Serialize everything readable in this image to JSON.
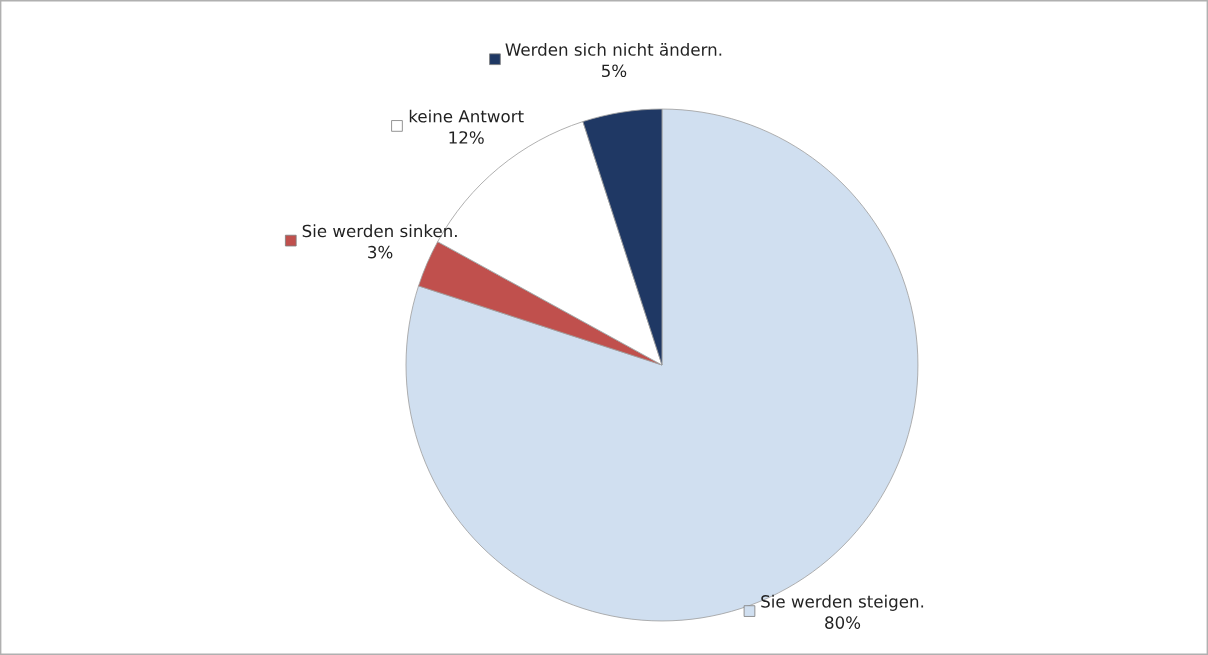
{
  "chart_data": {
    "type": "pie",
    "categories": [
      "Sie werden steigen.",
      "Sie werden sinken.",
      "keine Antwort",
      "Werden sich nicht ändern."
    ],
    "values": [
      80,
      3,
      12,
      5
    ],
    "colors": [
      "#d0dff0",
      "#c0504d",
      "#ffffff",
      "#1f3864"
    ],
    "value_labels": [
      "80%",
      "3%",
      "12%",
      "5%"
    ],
    "legend": "top left"
  }
}
